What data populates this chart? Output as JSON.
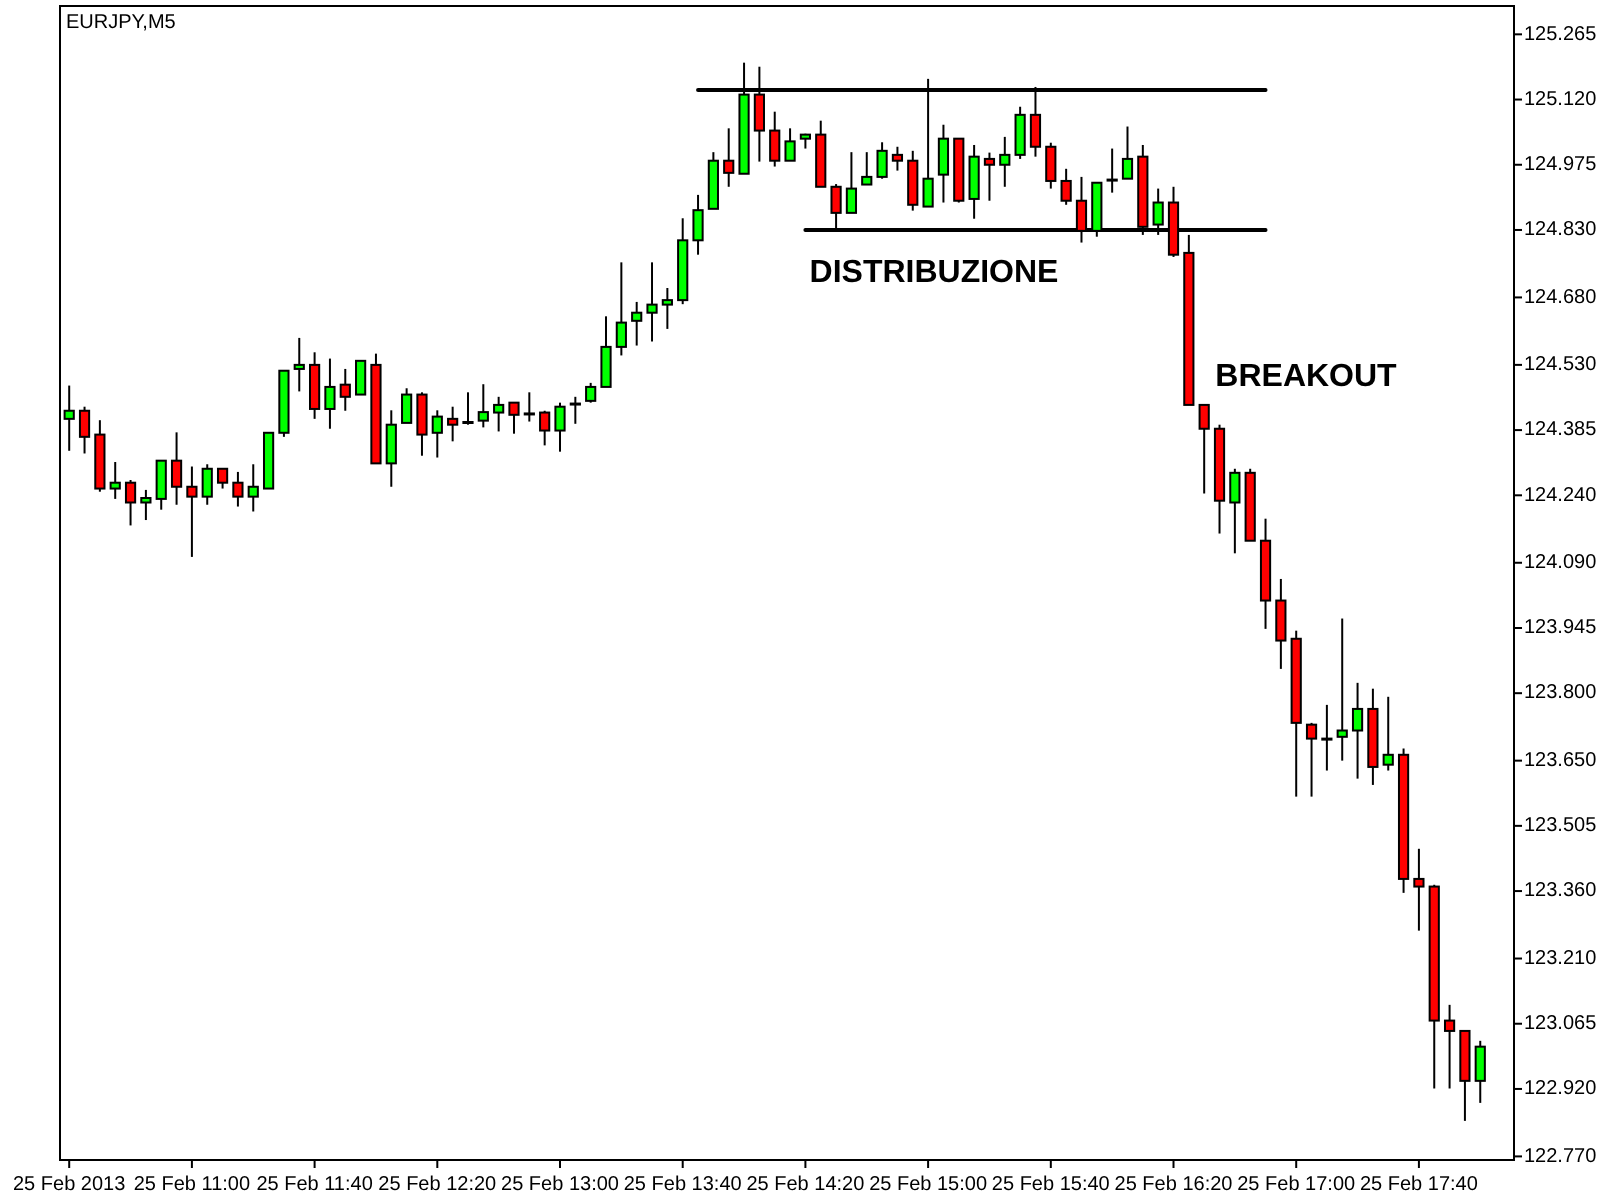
{
  "chart_data": {
    "type": "candlestick",
    "title": "EURJPY,M5",
    "x": [
      "2013-02-25T10:20",
      "2013-02-25T10:25",
      "2013-02-25T10:30",
      "2013-02-25T10:35",
      "2013-02-25T10:40",
      "2013-02-25T10:45",
      "2013-02-25T10:50",
      "2013-02-25T10:55",
      "2013-02-25T11:00",
      "2013-02-25T11:05",
      "2013-02-25T11:10",
      "2013-02-25T11:15",
      "2013-02-25T11:20",
      "2013-02-25T11:25",
      "2013-02-25T11:30",
      "2013-02-25T11:35",
      "2013-02-25T11:40",
      "2013-02-25T11:45",
      "2013-02-25T11:50",
      "2013-02-25T11:55",
      "2013-02-25T12:00",
      "2013-02-25T12:05",
      "2013-02-25T12:10",
      "2013-02-25T12:15",
      "2013-02-25T12:20",
      "2013-02-25T12:25",
      "2013-02-25T12:30",
      "2013-02-25T12:35",
      "2013-02-25T12:40",
      "2013-02-25T12:45",
      "2013-02-25T12:50",
      "2013-02-25T12:55",
      "2013-02-25T13:00",
      "2013-02-25T13:05",
      "2013-02-25T13:10",
      "2013-02-25T13:15",
      "2013-02-25T13:20",
      "2013-02-25T13:25",
      "2013-02-25T13:30",
      "2013-02-25T13:35",
      "2013-02-25T13:40",
      "2013-02-25T13:45",
      "2013-02-25T13:50",
      "2013-02-25T13:55",
      "2013-02-25T14:00",
      "2013-02-25T14:05",
      "2013-02-25T14:10",
      "2013-02-25T14:15",
      "2013-02-25T14:20",
      "2013-02-25T14:25",
      "2013-02-25T14:30",
      "2013-02-25T14:35",
      "2013-02-25T14:40",
      "2013-02-25T14:45",
      "2013-02-25T14:50",
      "2013-02-25T14:55",
      "2013-02-25T15:00",
      "2013-02-25T15:05",
      "2013-02-25T15:10",
      "2013-02-25T15:15",
      "2013-02-25T15:20",
      "2013-02-25T15:25",
      "2013-02-25T15:30",
      "2013-02-25T15:35",
      "2013-02-25T15:40",
      "2013-02-25T15:45",
      "2013-02-25T15:50",
      "2013-02-25T15:55",
      "2013-02-25T16:00",
      "2013-02-25T16:05",
      "2013-02-25T16:10",
      "2013-02-25T16:15",
      "2013-02-25T16:20",
      "2013-02-25T16:25",
      "2013-02-25T16:30",
      "2013-02-25T16:35",
      "2013-02-25T16:40",
      "2013-02-25T16:45",
      "2013-02-25T16:50",
      "2013-02-25T16:55",
      "2013-02-25T17:00",
      "2013-02-25T17:05",
      "2013-02-25T17:10",
      "2013-02-25T17:15",
      "2013-02-25T17:20",
      "2013-02-25T17:25",
      "2013-02-25T17:30",
      "2013-02-25T17:35",
      "2013-02-25T17:40",
      "2013-02-25T17:45",
      "2013-02-25T17:50",
      "2013-02-25T17:55",
      "2013-02-25T18:00"
    ],
    "ohlc": [
      [
        124.41,
        124.484,
        124.339,
        124.428
      ],
      [
        124.428,
        124.437,
        124.333,
        124.37
      ],
      [
        124.375,
        124.407,
        124.248,
        124.255
      ],
      [
        124.255,
        124.314,
        124.232,
        124.268
      ],
      [
        124.268,
        124.274,
        124.173,
        124.224
      ],
      [
        124.224,
        124.252,
        124.185,
        124.234
      ],
      [
        124.232,
        124.317,
        124.208,
        124.317
      ],
      [
        124.317,
        124.38,
        124.219,
        124.259
      ],
      [
        124.259,
        124.304,
        124.103,
        124.237
      ],
      [
        124.237,
        124.309,
        124.219,
        124.299
      ],
      [
        124.299,
        124.299,
        124.255,
        124.268
      ],
      [
        124.268,
        124.292,
        124.215,
        124.237
      ],
      [
        124.237,
        124.309,
        124.204,
        124.259
      ],
      [
        124.255,
        124.379,
        124.255,
        124.379
      ],
      [
        124.379,
        124.517,
        124.37,
        124.517
      ],
      [
        124.521,
        124.59,
        124.471,
        124.53
      ],
      [
        124.53,
        124.558,
        124.41,
        124.432
      ],
      [
        124.432,
        124.544,
        124.388,
        124.481
      ],
      [
        124.486,
        124.521,
        124.428,
        124.459
      ],
      [
        124.464,
        124.539,
        124.464,
        124.539
      ],
      [
        124.53,
        124.555,
        124.311,
        124.311
      ],
      [
        124.311,
        124.429,
        124.259,
        124.397
      ],
      [
        124.401,
        124.478,
        124.401,
        124.464
      ],
      [
        124.464,
        124.469,
        124.328,
        124.375
      ],
      [
        124.379,
        124.429,
        124.324,
        124.415
      ],
      [
        124.41,
        124.437,
        124.36,
        124.397
      ],
      [
        124.403,
        124.469,
        124.397,
        124.403
      ],
      [
        124.406,
        124.487,
        124.391,
        124.425
      ],
      [
        124.424,
        124.459,
        124.382,
        124.441
      ],
      [
        124.446,
        124.446,
        124.377,
        124.419
      ],
      [
        124.422,
        124.469,
        124.404,
        124.422
      ],
      [
        124.424,
        124.428,
        124.351,
        124.384
      ],
      [
        124.384,
        124.446,
        124.337,
        124.437
      ],
      [
        124.444,
        124.459,
        124.399,
        124.444
      ],
      [
        124.45,
        124.49,
        124.446,
        124.481
      ],
      [
        124.481,
        124.638,
        124.481,
        124.57
      ],
      [
        124.57,
        124.758,
        124.551,
        124.624
      ],
      [
        124.628,
        124.67,
        124.573,
        124.646
      ],
      [
        124.646,
        124.758,
        124.582,
        124.664
      ],
      [
        124.664,
        124.701,
        124.61,
        124.674
      ],
      [
        124.674,
        124.856,
        124.665,
        124.807
      ],
      [
        124.807,
        124.908,
        124.775,
        124.874
      ],
      [
        124.877,
        125.003,
        124.877,
        124.984
      ],
      [
        124.984,
        125.056,
        124.926,
        124.957
      ],
      [
        124.955,
        125.202,
        124.955,
        125.131
      ],
      [
        125.131,
        125.193,
        124.982,
        125.051
      ],
      [
        125.051,
        125.093,
        124.971,
        124.984
      ],
      [
        124.984,
        125.056,
        124.984,
        125.027
      ],
      [
        125.033,
        125.044,
        125.011,
        125.042
      ],
      [
        125.042,
        125.073,
        124.926,
        124.926
      ],
      [
        124.926,
        124.932,
        124.834,
        124.868
      ],
      [
        124.868,
        125.003,
        124.868,
        124.922
      ],
      [
        124.931,
        125.003,
        124.931,
        124.948
      ],
      [
        124.948,
        125.025,
        124.944,
        125.006
      ],
      [
        124.997,
        125.015,
        124.962,
        124.984
      ],
      [
        124.984,
        125.006,
        124.873,
        124.886
      ],
      [
        124.882,
        125.166,
        124.882,
        124.944
      ],
      [
        124.953,
        125.064,
        124.891,
        125.033
      ],
      [
        125.033,
        125.033,
        124.891,
        124.895
      ],
      [
        124.899,
        125.019,
        124.855,
        124.993
      ],
      [
        124.988,
        125.002,
        124.895,
        124.975
      ],
      [
        124.975,
        125.037,
        124.926,
        124.997
      ],
      [
        124.997,
        125.104,
        124.988,
        125.086
      ],
      [
        125.086,
        125.148,
        124.993,
        125.015
      ],
      [
        125.015,
        125.024,
        124.922,
        124.939
      ],
      [
        124.939,
        124.966,
        124.886,
        124.895
      ],
      [
        124.895,
        124.948,
        124.802,
        124.828
      ],
      [
        124.828,
        124.935,
        124.815,
        124.935
      ],
      [
        124.942,
        125.011,
        124.913,
        124.942
      ],
      [
        124.944,
        125.06,
        124.944,
        124.988
      ],
      [
        124.993,
        125.019,
        124.819,
        124.837
      ],
      [
        124.842,
        124.922,
        124.819,
        124.891
      ],
      [
        124.891,
        124.926,
        124.77,
        124.775
      ],
      [
        124.779,
        124.819,
        124.441,
        124.441
      ],
      [
        124.441,
        124.441,
        124.244,
        124.388
      ],
      [
        124.388,
        124.397,
        124.155,
        124.228
      ],
      [
        124.224,
        124.299,
        124.111,
        124.29
      ],
      [
        124.29,
        124.299,
        124.139,
        124.139
      ],
      [
        124.139,
        124.188,
        123.943,
        124.006
      ],
      [
        124.006,
        124.054,
        123.854,
        123.917
      ],
      [
        123.921,
        123.939,
        123.57,
        123.734
      ],
      [
        123.73,
        123.734,
        123.57,
        123.699
      ],
      [
        123.699,
        123.774,
        123.628,
        123.699
      ],
      [
        123.703,
        123.966,
        123.65,
        123.717
      ],
      [
        123.717,
        123.823,
        123.61,
        123.765
      ],
      [
        123.765,
        123.81,
        123.596,
        123.636
      ],
      [
        123.641,
        123.792,
        123.628,
        123.663
      ],
      [
        123.663,
        123.677,
        123.356,
        123.387
      ],
      [
        123.387,
        123.454,
        123.272,
        123.37
      ],
      [
        123.37,
        123.374,
        122.921,
        123.072
      ],
      [
        123.072,
        123.107,
        122.921,
        123.049
      ],
      [
        123.049,
        123.049,
        122.849,
        122.938
      ],
      [
        122.938,
        123.027,
        122.889,
        123.014
      ]
    ],
    "colors": [
      "#00ff00",
      "#ff0000",
      "#ff0000",
      "#00ff00",
      "#ff0000",
      "#00ff00",
      "#00ff00",
      "#ff0000",
      "#ff0000",
      "#00ff00",
      "#ff0000",
      "#ff0000",
      "#00ff00",
      "#00ff00",
      "#00ff00",
      "#00ff00",
      "#ff0000",
      "#00ff00",
      "#ff0000",
      "#00ff00",
      "#ff0000",
      "#00ff00",
      "#00ff00",
      "#ff0000",
      "#00ff00",
      "#ff0000",
      "#00ff00",
      "#00ff00",
      "#00ff00",
      "#ff0000",
      "#00ff00",
      "#ff0000",
      "#00ff00",
      "#00ff00",
      "#00ff00",
      "#00ff00",
      "#00ff00",
      "#00ff00",
      "#00ff00",
      "#00ff00",
      "#00ff00",
      "#00ff00",
      "#00ff00",
      "#ff0000",
      "#00ff00",
      "#ff0000",
      "#ff0000",
      "#00ff00",
      "#00ff00",
      "#ff0000",
      "#ff0000",
      "#00ff00",
      "#00ff00",
      "#00ff00",
      "#ff0000",
      "#ff0000",
      "#00ff00",
      "#00ff00",
      "#ff0000",
      "#00ff00",
      "#ff0000",
      "#00ff00",
      "#00ff00",
      "#ff0000",
      "#ff0000",
      "#ff0000",
      "#ff0000",
      "#00ff00",
      "#00ff00",
      "#00ff00",
      "#ff0000",
      "#00ff00",
      "#ff0000",
      "#ff0000",
      "#ff0000",
      "#ff0000",
      "#00ff00",
      "#ff0000",
      "#ff0000",
      "#ff0000",
      "#ff0000",
      "#ff0000",
      "#00ff00",
      "#00ff00",
      "#00ff00",
      "#ff0000",
      "#00ff00",
      "#ff0000",
      "#ff0000",
      "#ff0000",
      "#ff0000",
      "#ff0000",
      "#00ff00"
    ],
    "series": [
      {
        "type": "line",
        "color": "#000000",
        "x": [
          "2013-02-25T13:45",
          "2013-02-25T16:50"
        ],
        "values": [
          125.141,
          125.141
        ]
      },
      {
        "type": "line",
        "color": "#000000",
        "x": [
          "2013-02-25T14:20",
          "2013-02-25T16:50"
        ],
        "values": [
          124.83,
          124.83
        ]
      }
    ],
    "annotations": [
      "DISTRIBUZIONE",
      "BREAKOUT"
    ],
    "xlim": [
      "2013-02-25T10:17",
      "2013-02-25T18:11"
    ],
    "xticks": [
      {
        "value": "2013-02-25T10:20",
        "label": "25 Feb 2013"
      },
      {
        "value": "2013-02-25T11:00",
        "label": "25 Feb 11:00"
      },
      {
        "value": "2013-02-25T11:40",
        "label": "25 Feb 11:40"
      },
      {
        "value": "2013-02-25T12:20",
        "label": "25 Feb 12:20"
      },
      {
        "value": "2013-02-25T13:00",
        "label": "25 Feb 13:00"
      },
      {
        "value": "2013-02-25T13:40",
        "label": "25 Feb 13:40"
      },
      {
        "value": "2013-02-25T14:20",
        "label": "25 Feb 14:20"
      },
      {
        "value": "2013-02-25T15:00",
        "label": "25 Feb 15:00"
      },
      {
        "value": "2013-02-25T15:40",
        "label": "25 Feb 15:40"
      },
      {
        "value": "2013-02-25T16:20",
        "label": "25 Feb 16:20"
      },
      {
        "value": "2013-02-25T17:00",
        "label": "25 Feb 17:00"
      },
      {
        "value": "2013-02-25T17:40",
        "label": "25 Feb 17:40"
      }
    ],
    "ylim": [
      122.762,
      125.328
    ],
    "yticks": [
      {
        "value": 125.265,
        "label": "125.265"
      },
      {
        "value": 125.12,
        "label": "125.120"
      },
      {
        "value": 124.975,
        "label": "124.975"
      },
      {
        "value": 124.83,
        "label": "124.830"
      },
      {
        "value": 124.68,
        "label": "124.680"
      },
      {
        "value": 124.53,
        "label": "124.530"
      },
      {
        "value": 124.385,
        "label": "124.385"
      },
      {
        "value": 124.24,
        "label": "124.240"
      },
      {
        "value": 124.09,
        "label": "124.090"
      },
      {
        "value": 123.945,
        "label": "123.945"
      },
      {
        "value": 123.8,
        "label": "123.800"
      },
      {
        "value": 123.65,
        "label": "123.650"
      },
      {
        "value": 123.505,
        "label": "123.505"
      },
      {
        "value": 123.36,
        "label": "123.360"
      },
      {
        "value": 123.21,
        "label": "123.210"
      },
      {
        "value": 123.065,
        "label": "123.065"
      },
      {
        "value": 122.92,
        "label": "122.920"
      },
      {
        "value": 122.77,
        "label": "122.770"
      }
    ]
  }
}
